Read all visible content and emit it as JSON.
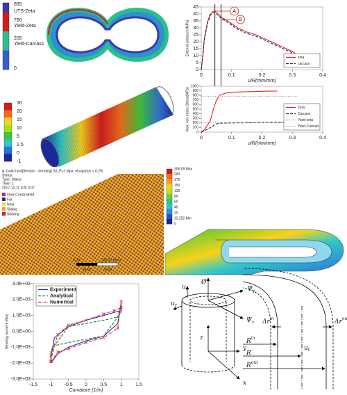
{
  "chart_data": [
    {
      "type": "line",
      "xlabel": "u/R(mm/mm)",
      "ylabel": "External pressure(MPa)",
      "xlim": [
        0,
        0.4
      ],
      "xticks": [
        0,
        0.1,
        0.2,
        0.3,
        0.4
      ],
      "ylim": [
        0,
        45
      ],
      "yticks": [
        0,
        5,
        10,
        15,
        20,
        25,
        30,
        35,
        40,
        45
      ],
      "legend": "lower right",
      "series": [
        {
          "name": "zeta",
          "color": "#e8202a",
          "dash": "solid",
          "x": [
            0,
            0.005,
            0.01,
            0.02,
            0.03,
            0.04,
            0.045,
            0.05,
            0.06,
            0.065,
            0.07,
            0.08,
            0.1,
            0.12,
            0.15,
            0.18,
            0.2,
            0.22,
            0.25,
            0.28,
            0.3,
            0.32
          ],
          "values": [
            0,
            10,
            22,
            34,
            40,
            42,
            42,
            41,
            39,
            38,
            37,
            36,
            33,
            30,
            27,
            25,
            23,
            21,
            18,
            15,
            13,
            10
          ]
        },
        {
          "name": "carcass",
          "color": "#1f2a44",
          "dash": "dashed",
          "x": [
            0,
            0.005,
            0.01,
            0.02,
            0.03,
            0.04,
            0.045,
            0.05,
            0.06,
            0.065,
            0.07,
            0.08,
            0.1,
            0.12,
            0.15,
            0.18,
            0.2,
            0.22,
            0.25,
            0.28,
            0.3,
            0.32
          ],
          "values": [
            0,
            9,
            21,
            33,
            39,
            41,
            41,
            40,
            38,
            37,
            36,
            35,
            32,
            29,
            26,
            24,
            22,
            20,
            17,
            14,
            12,
            9
          ]
        }
      ],
      "annotations": [
        {
          "text": "A",
          "x": 0.045
        },
        {
          "text": "B",
          "x": 0.065
        }
      ]
    },
    {
      "type": "line",
      "xlabel": "u/R(mm/mm)",
      "ylabel": "Max. von mises Stress(MPa)",
      "xlim": [
        0,
        0.4
      ],
      "xticks": [
        0,
        0.1,
        0.2,
        0.3,
        0.4
      ],
      "ylim": [
        0,
        1000
      ],
      "yticks": [
        0,
        100,
        200,
        300,
        400,
        500,
        600,
        700,
        800,
        900,
        1000
      ],
      "legend": "lower right",
      "series": [
        {
          "name": "Zeta",
          "color": "#e8202a",
          "dash": "solid",
          "x": [
            0,
            0.01,
            0.02,
            0.03,
            0.04,
            0.05,
            0.06,
            0.08,
            0.1,
            0.15,
            0.2,
            0.25
          ],
          "values": [
            0,
            50,
            150,
            250,
            500,
            700,
            800,
            850,
            870,
            880,
            890,
            895
          ]
        },
        {
          "name": "Carcass",
          "color": "#1f2a44",
          "dash": "dashed",
          "x": [
            0,
            0.02,
            0.04,
            0.05,
            0.06,
            0.1,
            0.2,
            0.3
          ],
          "values": [
            0,
            60,
            140,
            180,
            195,
            200,
            210,
            220
          ]
        },
        {
          "name": "Yield-zeta",
          "color": "#999999",
          "dash": "dotted",
          "x": [
            0,
            0.32
          ],
          "values": [
            780,
            780
          ]
        },
        {
          "name": "Yield-Carcass",
          "color": "#999999",
          "dash": "dotted",
          "x": [
            0,
            0.32
          ],
          "values": [
            205,
            205
          ]
        }
      ]
    },
    {
      "type": "line",
      "xlabel": "Curvature (1/m)",
      "ylabel": "Bending moment (Nm)",
      "xlim": [
        -1.5,
        1.5
      ],
      "xticks": [
        -1.5,
        -1,
        -0.5,
        0,
        0.5,
        1,
        1.5
      ],
      "ylim": [
        -3000,
        3000
      ],
      "yticks": [
        {
          "value": -3000,
          "label": "-3.0E+03"
        },
        {
          "value": -2000,
          "label": "-2.0E+03"
        },
        {
          "value": -1000,
          "label": "-1.0E+03"
        },
        {
          "value": 0,
          "label": "0.0E+00"
        },
        {
          "value": 1000,
          "label": "1.0E+03"
        },
        {
          "value": 2000,
          "label": "2.0E+03"
        },
        {
          "value": 3000,
          "label": "3.0E+03"
        }
      ],
      "legend": "upper left",
      "series": [
        {
          "name": "Experiment",
          "color": "#1f2fbf",
          "dash": "solid",
          "x": [
            -1,
            -0.8,
            -0.5,
            0,
            0.5,
            0.9,
            1,
            1,
            0.8,
            0.5,
            0,
            -0.5,
            -0.9,
            -1,
            -1
          ],
          "values": [
            -2000,
            -1400,
            -1000,
            -600,
            -300,
            500,
            1800,
            1300,
            1200,
            1000,
            700,
            300,
            -400,
            -1600,
            -2000
          ]
        },
        {
          "name": "Analytical",
          "color": "#1f7a1f",
          "dash": "dashed",
          "x": [
            -1,
            -0.9,
            -0.5,
            0,
            0.5,
            0.9,
            1,
            1,
            0.9,
            0.5,
            0,
            -0.5,
            -0.9,
            -1,
            -1
          ],
          "values": [
            -1800,
            -900,
            -700,
            -500,
            -300,
            900,
            1700,
            1200,
            900,
            700,
            500,
            300,
            -900,
            -1200,
            -1800
          ]
        },
        {
          "name": "Numerical",
          "color": "#e8202a",
          "dash": "dashdot",
          "marker": "x",
          "x": [
            -1,
            -0.8,
            -0.5,
            0,
            0.5,
            0.9,
            1,
            1,
            0.8,
            0.5,
            0,
            -0.5,
            -0.8,
            -1,
            -1
          ],
          "values": [
            -1900,
            -1300,
            -1100,
            -700,
            -400,
            200,
            1900,
            1500,
            1300,
            1100,
            700,
            400,
            -200,
            -1500,
            -1900
          ]
        }
      ]
    }
  ],
  "colorbars": [
    {
      "labels": [
        "895",
        "UTS-Zeta",
        "780",
        "Yield-Zeta",
        "205",
        "Yield-Carcass",
        "0"
      ],
      "colors": [
        "#3a3aa8",
        "#d7191c",
        "#d7191c",
        "#2bbf8a",
        "#2bbf8a",
        "#2f5fd0",
        "#2f5fd0"
      ]
    },
    {
      "labels": [
        "30",
        "20",
        "15",
        "10",
        "5",
        "2.5",
        "0",
        "-1"
      ],
      "colors": [
        "#d7191c",
        "#f46d1a",
        "#f8d21c",
        "#a6e01c",
        "#3cc83c",
        "#2fc8c8",
        "#2f6fe0",
        "#1a2a9a"
      ]
    },
    {
      "labels": [
        "306.09 Max",
        "200",
        "175",
        "150",
        "130",
        "80",
        "60",
        "40",
        "20",
        "12.252 Min",
        "0"
      ],
      "colors": [
        "#d7191c",
        "#f46d1a",
        "#f8a01c",
        "#f8d21c",
        "#c8e01c",
        "#6cd23c",
        "#2fc87a",
        "#2fc8c8",
        "#2f8fe0",
        "#2f4fd0",
        "#1a2a9a"
      ]
    }
  ],
  "fe_view": {
    "header": [
      "A: [solid mod]{tension - bending} Sd_P=1 Mpa, elongation = 0.2%",
      "Status",
      "Type: Status",
      "Time: 1",
      "2017-12-11 오후 4:07"
    ],
    "legend": [
      {
        "name": "Over Constrained",
        "color": "#b0308a"
      },
      {
        "name": "Far",
        "color": "#2a2a9a"
      },
      {
        "name": "Near",
        "color": "#f0e040"
      },
      {
        "name": "Sliding",
        "color": "#f0a030"
      },
      {
        "name": "Sticking",
        "color": "#d02020"
      }
    ],
    "scale": [
      "0.00",
      "100.00 (mm)",
      "25.00",
      "75.00"
    ]
  },
  "diagram": {
    "left": [
      {
        "base": "Ø"
      },
      {
        "base": "Ψ",
        "sub": "y"
      },
      {
        "base": "Ψ",
        "sub": "x"
      },
      {
        "base": "u",
        "sub": "z"
      },
      {
        "base": "u",
        "sub": "r"
      },
      {
        "base": "z"
      },
      {
        "base": "y"
      },
      {
        "base": "x"
      }
    ],
    "right": [
      {
        "base": "Δr",
        "sup": "in"
      },
      {
        "base": "Δr",
        "sup": "out"
      },
      {
        "base": "R",
        "sup": "in"
      },
      {
        "base": "R"
      },
      {
        "base": "R",
        "sup": "out"
      },
      {
        "base": "u",
        "sub": "t"
      }
    ]
  }
}
